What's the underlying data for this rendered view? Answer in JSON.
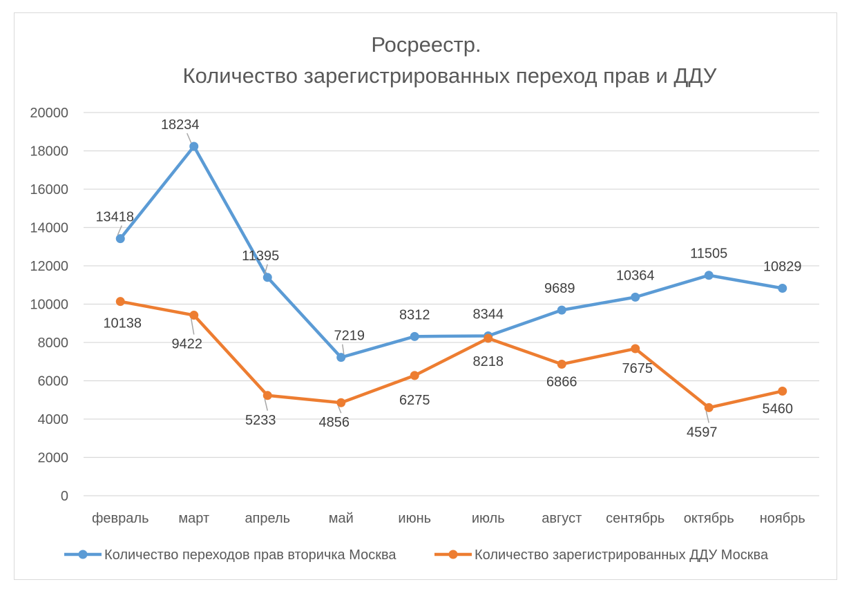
{
  "chart_data": {
    "type": "line",
    "title_lines": [
      "Росреестр.",
      "Количество зарегистрированных переход прав и  ДДУ"
    ],
    "categories": [
      "февраль",
      "март",
      "апрель",
      "май",
      "июнь",
      "июль",
      "август",
      "сентябрь",
      "октябрь",
      "ноябрь"
    ],
    "ylim": [
      0,
      20000
    ],
    "yticks": [
      0,
      2000,
      4000,
      6000,
      8000,
      10000,
      12000,
      14000,
      16000,
      18000,
      20000
    ],
    "grid": true,
    "legend_position": "bottom",
    "series": [
      {
        "name": "Количество переходов прав вторичка Москва",
        "color": "#5b9bd5",
        "values": [
          13418,
          18234,
          11395,
          7219,
          8312,
          8344,
          9689,
          10364,
          11505,
          10829
        ],
        "label_position": "above"
      },
      {
        "name": "Количество зарегистрированных ДДУ Москва",
        "color": "#ed7d31",
        "values": [
          10138,
          9422,
          5233,
          4856,
          6275,
          8218,
          6866,
          7675,
          4597,
          5460
        ],
        "label_position": "below"
      }
    ]
  }
}
